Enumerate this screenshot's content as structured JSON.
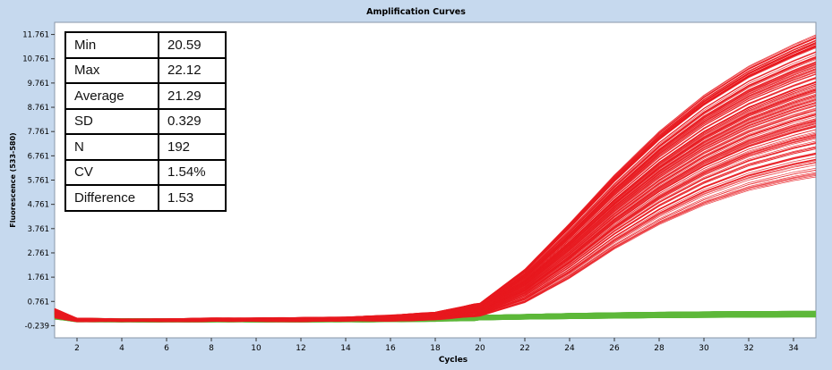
{
  "chart_data": {
    "type": "line",
    "title": "Amplification Curves",
    "xlabel": "Cycles",
    "ylabel": "Fluorescence (533-580)",
    "xlim": [
      1,
      35
    ],
    "ylim": [
      -0.739,
      12.261
    ],
    "x_ticks": [
      "2",
      "4",
      "6",
      "8",
      "10",
      "12",
      "14",
      "16",
      "18",
      "20",
      "22",
      "24",
      "26",
      "28",
      "30",
      "32",
      "34"
    ],
    "y_ticks": [
      "-0.239",
      "0.761",
      "1.761",
      "2.761",
      "3.761",
      "4.761",
      "5.761",
      "6.761",
      "7.761",
      "8.761",
      "9.761",
      "10.761",
      "11.761"
    ],
    "grid": false,
    "series": [
      {
        "color": "#e8191e",
        "count": 192,
        "x": [
          1,
          2,
          4,
          6,
          8,
          10,
          12,
          14,
          16,
          18,
          20,
          22,
          24,
          26,
          28,
          30,
          32,
          34,
          35
        ],
        "y_min": [
          0.1,
          -0.05,
          -0.05,
          -0.05,
          -0.05,
          -0.05,
          -0.05,
          -0.04,
          -0.03,
          0.0,
          0.15,
          0.7,
          1.7,
          2.9,
          3.9,
          4.7,
          5.3,
          5.7,
          5.85
        ],
        "y_max": [
          0.45,
          0.05,
          0.02,
          0.02,
          0.06,
          0.06,
          0.08,
          0.1,
          0.18,
          0.3,
          0.7,
          2.1,
          4.0,
          6.0,
          7.8,
          9.3,
          10.5,
          11.4,
          11.8
        ]
      },
      {
        "color": "#5db83a",
        "count": 192,
        "x": [
          1,
          2,
          4,
          6,
          8,
          10,
          12,
          14,
          16,
          18,
          20,
          22,
          24,
          26,
          28,
          30,
          32,
          34,
          35
        ],
        "y_min": [
          0.05,
          -0.05,
          -0.06,
          -0.06,
          -0.06,
          -0.06,
          -0.06,
          -0.06,
          -0.05,
          -0.04,
          0.0,
          0.03,
          0.05,
          0.07,
          0.09,
          0.1,
          0.11,
          0.12,
          0.12
        ],
        "y_max": [
          0.35,
          0.03,
          0.02,
          0.02,
          0.03,
          0.03,
          0.03,
          0.05,
          0.07,
          0.12,
          0.18,
          0.22,
          0.26,
          0.29,
          0.31,
          0.33,
          0.34,
          0.35,
          0.35
        ]
      }
    ]
  },
  "stats_table": {
    "rows": [
      {
        "label": "Min",
        "value": "20.59"
      },
      {
        "label": "Max",
        "value": "22.12"
      },
      {
        "label": "Average",
        "value": "21.29"
      },
      {
        "label": "SD",
        "value": "0.329"
      },
      {
        "label": "N",
        "value": "192"
      },
      {
        "label": "CV",
        "value": "1.54%"
      },
      {
        "label": "Difference",
        "value": "1.53"
      }
    ]
  }
}
